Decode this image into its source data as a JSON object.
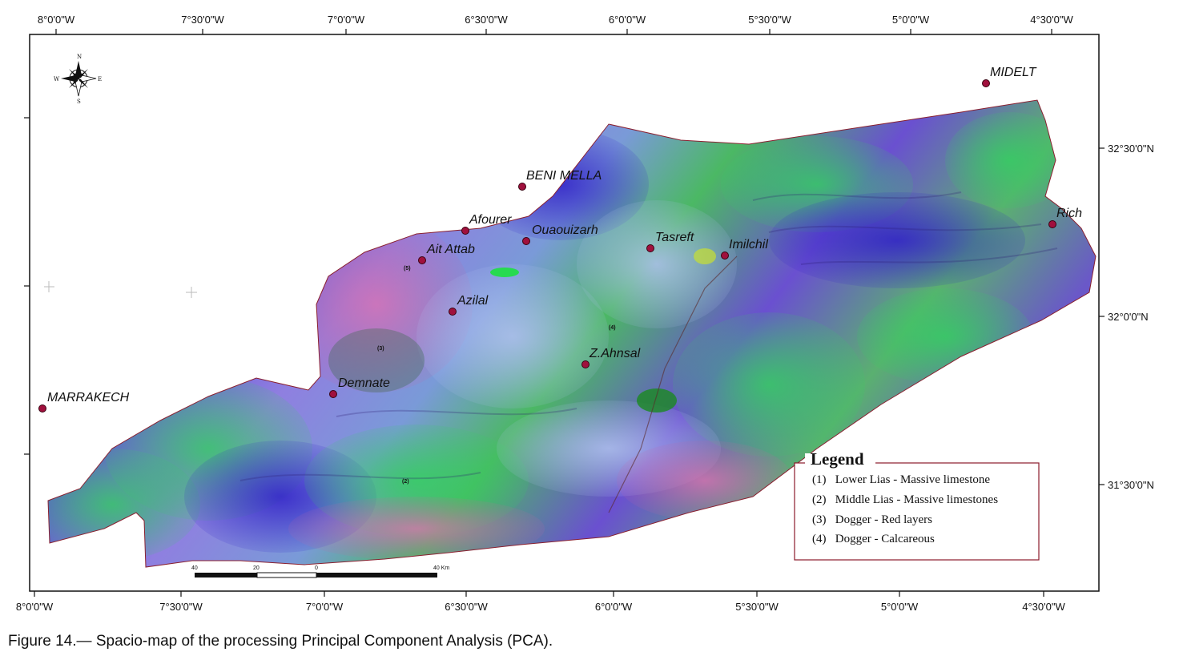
{
  "caption": "Figure 14.— Spacio-map of the processing Principal Component Analysis (PCA).",
  "top_lon_labels": [
    "8°0'0\"W",
    "7°30'0\"W",
    "7°0'0\"W",
    "6°30'0\"W",
    "6°0'0\"W",
    "5°30'0\"W",
    "5°0'0\"W",
    "4°30'0\"W"
  ],
  "bottom_lon_labels": [
    "8°0'0\"W",
    "7°30'0\"W",
    "7°0'0\"W",
    "6°30'0\"W",
    "6°0'0\"W",
    "5°30'0\"W",
    "5°0'0\"W",
    "4°30'0\"W"
  ],
  "lat_labels": [
    "32°30'0\"N",
    "32°0'0\"N",
    "31°30'0\"N"
  ],
  "cities": [
    {
      "name": "MIDELT"
    },
    {
      "name": "BENI MELLA"
    },
    {
      "name": "Afourer"
    },
    {
      "name": "Ouaouizarh"
    },
    {
      "name": "Ait Attab"
    },
    {
      "name": "Tasreft"
    },
    {
      "name": "Imilchil"
    },
    {
      "name": "Rich"
    },
    {
      "name": "Azilal"
    },
    {
      "name": "Z.Ahnsal"
    },
    {
      "name": "Demnate"
    },
    {
      "name": "MARRAKECH"
    }
  ],
  "unit_markers": [
    "(5)",
    "(3)",
    "(4)",
    "(2)"
  ],
  "scale_bar": {
    "labels": [
      "40",
      "20",
      "0",
      "40 Km"
    ]
  },
  "compass": {
    "n": "N",
    "s": "S",
    "e": "E",
    "w": "W"
  },
  "legend": {
    "title": "Legend",
    "items": [
      "(1)   Lower Lias - Massive limestone",
      "(2)   Middle Lias - Massive limestones",
      "(3)   Dogger - Red layers",
      "(4)   Dogger - Calcareous"
    ]
  },
  "colors": {
    "frame": "#111111",
    "city_marker": "#a0103d",
    "legend_border": "#8b1a2b",
    "pca_blue": "#4a3fd0",
    "pca_purple": "#8a5ad8",
    "pca_green": "#3fbf5a",
    "pca_magenta": "#d05aa8",
    "pca_lightblue": "#9aa8e8"
  }
}
